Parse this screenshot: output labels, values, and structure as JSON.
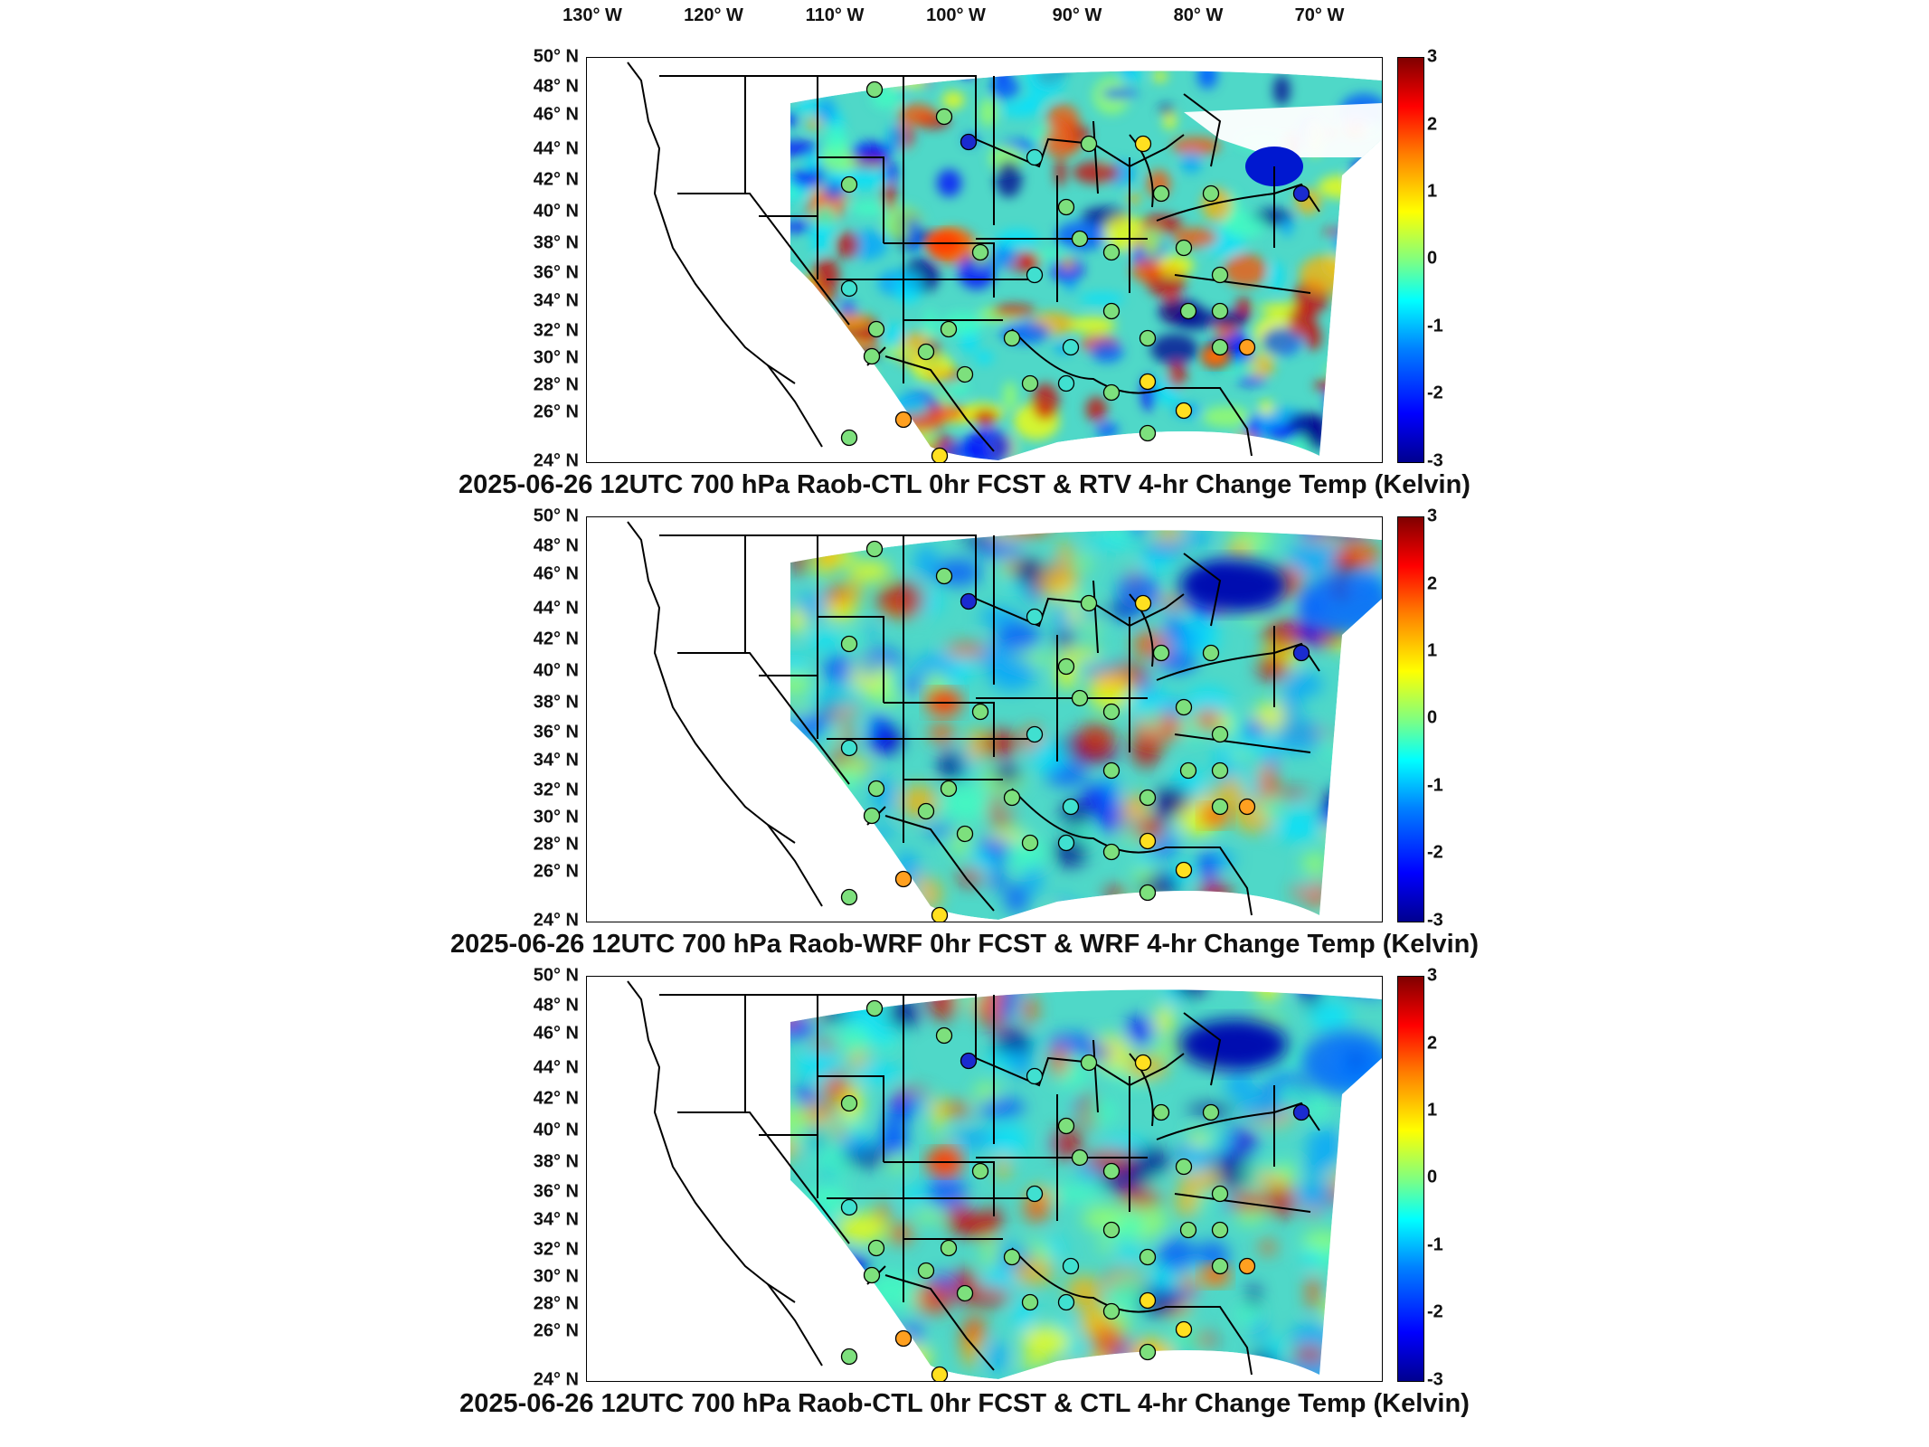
{
  "longitude_labels": [
    "130° W",
    "120° W",
    "110° W",
    "100° W",
    "90° W",
    "80° W",
    "70° W"
  ],
  "latitude_labels": [
    "50° N",
    "48° N",
    "46° N",
    "44° N",
    "42° N",
    "40° N",
    "38° N",
    "36° N",
    "34° N",
    "32° N",
    "30° N",
    "28° N",
    "26° N",
    "24° N"
  ],
  "colorbar_ticks": [
    "3",
    "2",
    "1",
    "0",
    "-1",
    "-2",
    "-3"
  ],
  "colorbar_range": [
    -3,
    3
  ],
  "colormap": "jet",
  "panels": [
    {
      "title": "2025-06-26 12UTC 700 hPa Raob-CTL 0hr FCST & RTV 4-hr Change Temp (Kelvin)"
    },
    {
      "title": "2025-06-26 12UTC 700 hPa Raob-WRF 0hr FCST & WRF 4-hr Change Temp (Kelvin)"
    },
    {
      "title": "2025-06-26 12UTC 700 hPa Raob-CTL 0hr FCST & CTL 4-hr Change Temp (Kelvin)"
    }
  ],
  "colors": {
    "field_base": "#4fd8c8",
    "outline": "#000000"
  }
}
